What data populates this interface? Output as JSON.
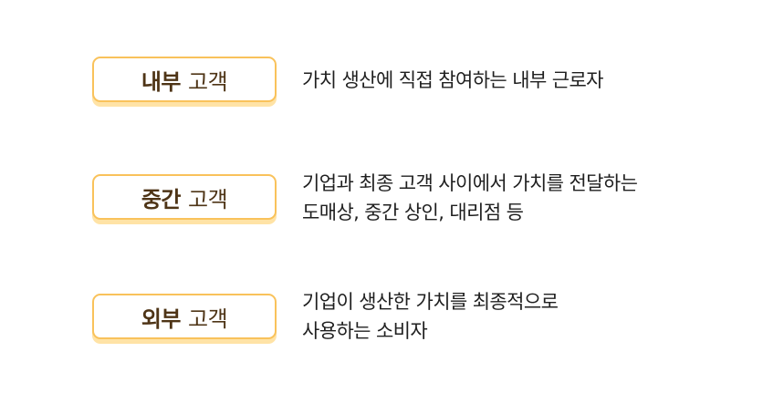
{
  "items": [
    {
      "badge_strong": "내부",
      "badge_light": "고객",
      "desc_lines": [
        "가치 생산에 직접 참여하는 내부 근로자"
      ]
    },
    {
      "badge_strong": "중간",
      "badge_light": "고객",
      "desc_lines": [
        "기업과 최종 고객 사이에서 가치를 전달하는",
        "도매상, 중간 상인, 대리점 등"
      ]
    },
    {
      "badge_strong": "외부",
      "badge_light": "고객",
      "desc_lines": [
        "기업이 생산한 가치를 최종적으로",
        "사용하는 소비자"
      ]
    }
  ]
}
